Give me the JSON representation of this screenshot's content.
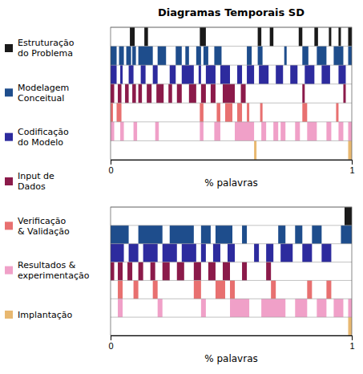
{
  "chart_data": [
    {
      "type": "bar",
      "orientation": "horizontal",
      "title": "Diagramas Temporais SD",
      "xlabel": "% palavras",
      "xlim": [
        0,
        1
      ],
      "xticks": [
        0,
        1
      ],
      "series": [
        {
          "name": "Estruturação\ndo Problema",
          "color": "#1a1a1a",
          "values": [
            [
              0.08,
              0.1
            ],
            [
              0.14,
              0.155
            ],
            [
              0.37,
              0.395
            ],
            [
              0.61,
              0.625
            ],
            [
              0.66,
              0.675
            ],
            [
              0.78,
              0.795
            ],
            [
              0.845,
              0.86
            ],
            [
              0.905,
              0.915
            ],
            [
              0.945,
              0.955
            ],
            [
              0.985,
              1.0
            ]
          ]
        },
        {
          "name": "Modelagem\nConceitual",
          "color": "#1e4d8c",
          "values": [
            [
              0.0,
              0.025
            ],
            [
              0.035,
              0.055
            ],
            [
              0.065,
              0.085
            ],
            [
              0.09,
              0.105
            ],
            [
              0.115,
              0.175
            ],
            [
              0.195,
              0.23
            ],
            [
              0.27,
              0.295
            ],
            [
              0.31,
              0.325
            ],
            [
              0.355,
              0.375
            ],
            [
              0.385,
              0.405
            ],
            [
              0.43,
              0.46
            ],
            [
              0.565,
              0.585
            ],
            [
              0.61,
              0.63
            ],
            [
              0.72,
              0.73
            ],
            [
              0.795,
              0.82
            ],
            [
              0.855,
              0.895
            ],
            [
              0.925,
              0.965
            ],
            [
              0.985,
              1.0
            ]
          ]
        },
        {
          "name": "Codificação\ndo Modelo",
          "color": "#2d2b9e",
          "values": [
            [
              0.0,
              0.025
            ],
            [
              0.04,
              0.05
            ],
            [
              0.075,
              0.095
            ],
            [
              0.125,
              0.145
            ],
            [
              0.175,
              0.195
            ],
            [
              0.245,
              0.27
            ],
            [
              0.295,
              0.345
            ],
            [
              0.365,
              0.375
            ],
            [
              0.395,
              0.435
            ],
            [
              0.455,
              0.495
            ],
            [
              0.525,
              0.545
            ],
            [
              0.565,
              0.595
            ],
            [
              0.615,
              0.655
            ],
            [
              0.685,
              0.715
            ],
            [
              0.745,
              0.775
            ],
            [
              0.805,
              0.845
            ],
            [
              0.875,
              0.91
            ],
            [
              0.945,
              0.975
            ]
          ]
        },
        {
          "name": "Input de\nDados",
          "color": "#8b1a4a",
          "values": [
            [
              0.0,
              0.015
            ],
            [
              0.03,
              0.045
            ],
            [
              0.06,
              0.075
            ],
            [
              0.09,
              0.105
            ],
            [
              0.115,
              0.13
            ],
            [
              0.15,
              0.17
            ],
            [
              0.19,
              0.22
            ],
            [
              0.24,
              0.255
            ],
            [
              0.275,
              0.295
            ],
            [
              0.325,
              0.355
            ],
            [
              0.375,
              0.395
            ],
            [
              0.415,
              0.435
            ],
            [
              0.465,
              0.515
            ],
            [
              0.54,
              0.56
            ],
            [
              0.795,
              0.805
            ],
            [
              0.965,
              0.975
            ]
          ]
        },
        {
          "name": "Verificação\n& Validação",
          "color": "#e87070",
          "values": [
            [
              0.0,
              0.01
            ],
            [
              0.025,
              0.045
            ],
            [
              0.37,
              0.385
            ],
            [
              0.44,
              0.455
            ],
            [
              0.475,
              0.505
            ],
            [
              0.525,
              0.545
            ],
            [
              0.565,
              0.575
            ],
            [
              0.62,
              0.63
            ],
            [
              0.795,
              0.815
            ],
            [
              0.935,
              0.945
            ]
          ]
        },
        {
          "name": "Resultados &\nexperimentação",
          "color": "#f0a0c8",
          "values": [
            [
              0.0,
              0.015
            ],
            [
              0.04,
              0.055
            ],
            [
              0.095,
              0.11
            ],
            [
              0.185,
              0.2
            ],
            [
              0.37,
              0.385
            ],
            [
              0.43,
              0.455
            ],
            [
              0.515,
              0.595
            ],
            [
              0.625,
              0.645
            ],
            [
              0.675,
              0.695
            ],
            [
              0.705,
              0.725
            ],
            [
              0.765,
              0.785
            ],
            [
              0.815,
              0.855
            ],
            [
              0.895,
              0.915
            ],
            [
              0.945,
              0.965
            ],
            [
              0.985,
              1.0
            ]
          ]
        },
        {
          "name": "Implantação",
          "color": "#e8b870",
          "values": [
            [
              0.595,
              0.605
            ],
            [
              0.985,
              1.0
            ]
          ]
        }
      ]
    },
    {
      "type": "bar",
      "orientation": "horizontal",
      "xlabel": "% palavras",
      "xlim": [
        0,
        1
      ],
      "xticks": [
        0,
        1
      ],
      "series": [
        {
          "color": "#1a1a1a",
          "values": [
            [
              0.97,
              1.0
            ]
          ]
        },
        {
          "color": "#1e4d8c",
          "values": [
            [
              0.0,
              0.075
            ],
            [
              0.115,
              0.215
            ],
            [
              0.245,
              0.345
            ],
            [
              0.375,
              0.415
            ],
            [
              0.435,
              0.505
            ],
            [
              0.545,
              0.565
            ],
            [
              0.695,
              0.725
            ],
            [
              0.765,
              0.795
            ],
            [
              0.835,
              0.875
            ],
            [
              0.955,
              1.0
            ]
          ]
        },
        {
          "color": "#2d2b9e",
          "values": [
            [
              0.0,
              0.055
            ],
            [
              0.075,
              0.115
            ],
            [
              0.135,
              0.195
            ],
            [
              0.215,
              0.275
            ],
            [
              0.295,
              0.355
            ],
            [
              0.375,
              0.395
            ],
            [
              0.425,
              0.455
            ],
            [
              0.485,
              0.515
            ],
            [
              0.595,
              0.615
            ],
            [
              0.645,
              0.675
            ],
            [
              0.705,
              0.755
            ],
            [
              0.795,
              0.835
            ],
            [
              0.875,
              0.915
            ]
          ]
        },
        {
          "color": "#8b1a4a",
          "values": [
            [
              0.0,
              0.015
            ],
            [
              0.03,
              0.05
            ],
            [
              0.07,
              0.09
            ],
            [
              0.115,
              0.135
            ],
            [
              0.165,
              0.185
            ],
            [
              0.215,
              0.245
            ],
            [
              0.275,
              0.305
            ],
            [
              0.345,
              0.375
            ],
            [
              0.405,
              0.435
            ],
            [
              0.465,
              0.495
            ],
            [
              0.545,
              0.565
            ],
            [
              0.645,
              0.665
            ]
          ]
        },
        {
          "color": "#e87070",
          "values": [
            [
              0.03,
              0.05
            ],
            [
              0.095,
              0.115
            ],
            [
              0.175,
              0.195
            ],
            [
              0.345,
              0.375
            ],
            [
              0.435,
              0.475
            ],
            [
              0.495,
              0.515
            ],
            [
              0.665,
              0.685
            ],
            [
              0.815,
              0.835
            ],
            [
              0.895,
              0.915
            ]
          ]
        },
        {
          "color": "#f0a0c8",
          "values": [
            [
              0.03,
              0.05
            ],
            [
              0.195,
              0.215
            ],
            [
              0.375,
              0.395
            ],
            [
              0.495,
              0.575
            ],
            [
              0.625,
              0.725
            ],
            [
              0.765,
              0.815
            ],
            [
              0.855,
              0.895
            ],
            [
              0.925,
              0.965
            ],
            [
              0.985,
              1.0
            ]
          ]
        },
        {
          "color": "#e8b870",
          "values": [
            [
              0.985,
              1.0
            ]
          ]
        }
      ]
    }
  ]
}
